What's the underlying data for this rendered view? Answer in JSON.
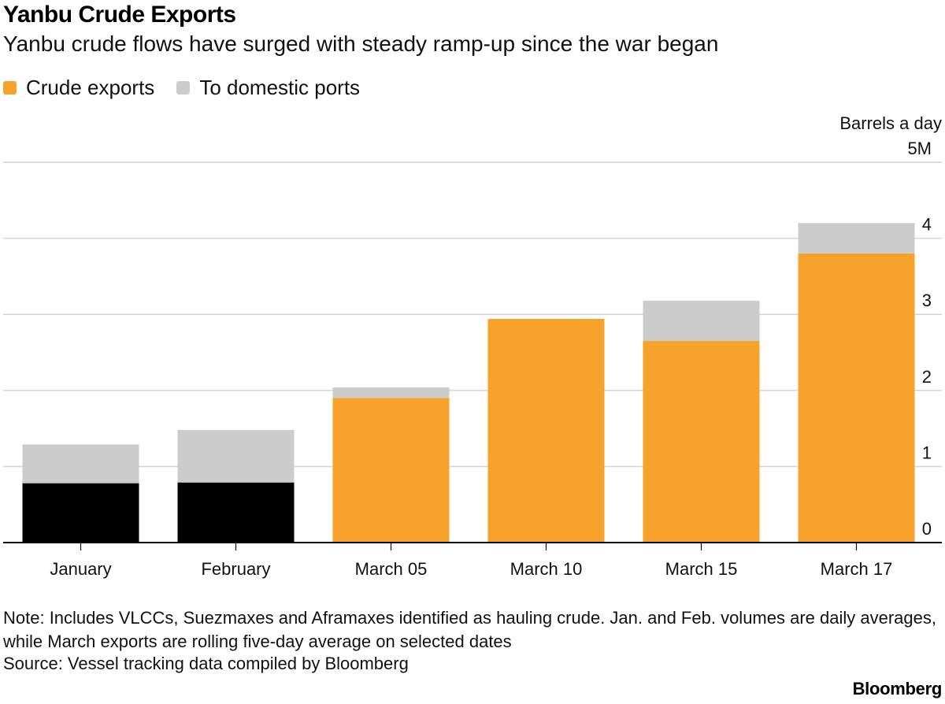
{
  "chart_data": {
    "type": "bar",
    "stacked": true,
    "title": "Yanbu Crude Exports",
    "subtitle": "Yanbu crude flows have surged with steady ramp-up since the war began",
    "ylabel": "Barrels a day",
    "ylim": [
      0,
      5
    ],
    "yticks": [
      "0",
      "1",
      "2",
      "3",
      "4",
      "5M"
    ],
    "ytick_values": [
      0,
      1,
      2,
      3,
      4,
      5
    ],
    "categories": [
      "January",
      "February",
      "March 05",
      "March 10",
      "March 15",
      "March 17"
    ],
    "series": [
      {
        "name": "Crude exports",
        "color": "#f7a22b",
        "values": [
          0.78,
          0.79,
          1.9,
          2.94,
          2.65,
          3.8
        ],
        "colors": [
          "#000000",
          "#000000",
          "#f7a22b",
          "#f7a22b",
          "#f7a22b",
          "#f7a22b"
        ]
      },
      {
        "name": "To domestic ports",
        "color": "#cccccc",
        "values": [
          0.51,
          0.69,
          0.14,
          0.0,
          0.53,
          0.4
        ]
      }
    ],
    "legend_position": "top-left",
    "grid": true
  },
  "note": "Note: Includes VLCCs, Suezmaxes and Aframaxes identified as hauling crude. Jan. and Feb. volumes are daily averages, while March exports are rolling five-day average on selected dates",
  "source": "Source: Vessel tracking data compiled by Bloomberg",
  "brand": "Bloomberg"
}
